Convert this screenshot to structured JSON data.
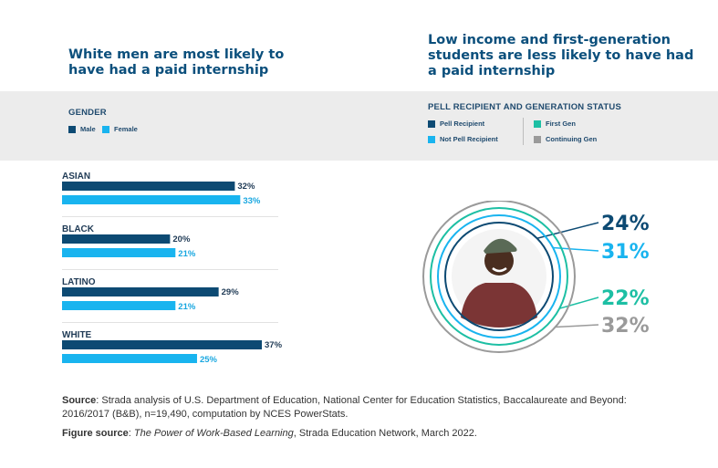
{
  "left_title": "White men are most likely to have had a paid internship",
  "right_title": "Low income and first-generation students are less likely to have had a paid internship",
  "legend_gender": {
    "title": "GENDER",
    "items": [
      {
        "label": "Male",
        "color": "#0d4a73"
      },
      {
        "label": "Female",
        "color": "#19b4ef"
      }
    ]
  },
  "legend_pell": {
    "title": "PELL RECIPIENT AND GENERATION STATUS",
    "items": [
      {
        "label": "Pell Recipient",
        "color": "#0d4a73"
      },
      {
        "label": "Not Pell Recipient",
        "color": "#19b4ef"
      },
      {
        "label": "First Gen",
        "color": "#1dbfa4"
      },
      {
        "label": "Continuing Gen",
        "color": "#9a9a9a"
      }
    ]
  },
  "chart_data": [
    {
      "type": "bar",
      "orientation": "horizontal",
      "title": "White men are most likely to have had a paid internship",
      "categories": [
        "ASIAN",
        "BLACK",
        "LATINO",
        "WHITE"
      ],
      "series": [
        {
          "name": "Male",
          "color": "#0d4a73",
          "values": [
            32,
            20,
            29,
            37
          ],
          "labels": [
            "32%",
            "20%",
            "29%",
            "37%"
          ]
        },
        {
          "name": "Female",
          "color": "#19b4ef",
          "values": [
            33,
            21,
            21,
            25
          ],
          "labels": [
            "33%",
            "21%",
            "21%",
            "25%"
          ]
        }
      ],
      "xlim": [
        0,
        40
      ]
    },
    {
      "type": "pie",
      "title": "Low income and first-generation students are less likely to have had a paid internship",
      "rings": [
        {
          "name": "Pell Recipient",
          "value": 24,
          "label": "24%",
          "color": "#0d4a73"
        },
        {
          "name": "Not Pell Recipient",
          "value": 31,
          "label": "31%",
          "color": "#19b4ef"
        },
        {
          "name": "First Gen",
          "value": 22,
          "label": "22%",
          "color": "#1dbfa4"
        },
        {
          "name": "Continuing Gen",
          "value": 32,
          "label": "32%",
          "color": "#9a9a9a"
        }
      ]
    }
  ],
  "source": {
    "label": "Source",
    "text": ": Strada analysis of U.S. Department of Education, National Center for Education Statistics, Baccalaureate and Beyond: 2016/2017 (B&B), n=19,490, computation by NCES PowerStats."
  },
  "figure_source": {
    "label": "Figure source",
    "sep": ": ",
    "italic": "The Power of Work-Based Learning",
    "rest": ", Strada Education Network, March 2022."
  }
}
